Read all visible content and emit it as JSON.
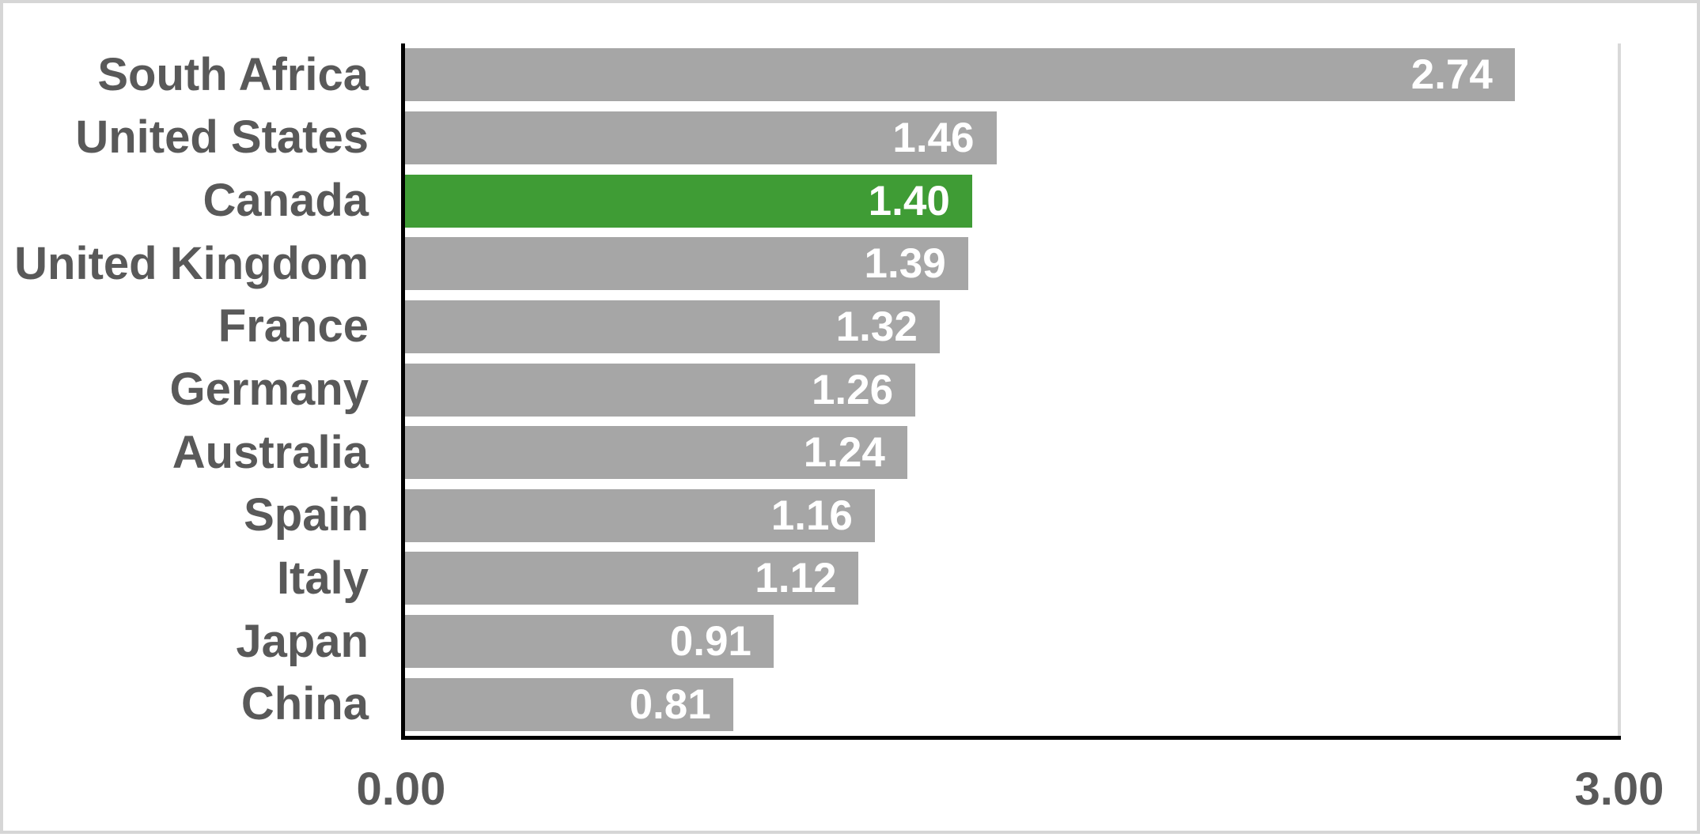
{
  "chart_data": {
    "type": "bar",
    "orientation": "horizontal",
    "title": "",
    "xlabel": "",
    "ylabel": "",
    "categories": [
      "South Africa",
      "United States",
      "Canada",
      "United Kingdom",
      "France",
      "Germany",
      "Australia",
      "Spain",
      "Italy",
      "Japan",
      "China"
    ],
    "values": [
      2.74,
      1.46,
      1.4,
      1.39,
      1.32,
      1.26,
      1.24,
      1.16,
      1.12,
      0.91,
      0.81
    ],
    "value_labels": [
      "2.74",
      "1.46",
      "1.40",
      "1.39",
      "1.32",
      "1.26",
      "1.24",
      "1.16",
      "1.12",
      "0.91",
      "0.81"
    ],
    "highlight_index": 2,
    "highlighted_category": "Canada",
    "xlim": [
      0,
      3
    ],
    "x_ticks": [
      "0.00",
      "3.00"
    ],
    "grid": "single vertical gridline at x=3.00",
    "legend": null,
    "colors": {
      "bar": "#a6a6a6",
      "highlight": "#3f9c35",
      "category_text": "#595959",
      "value_text": "#ffffff",
      "axis_line": "#000000",
      "gridline": "#d9d9d9",
      "frame_border": "#d6d6d6",
      "background": "#ffffff"
    }
  }
}
